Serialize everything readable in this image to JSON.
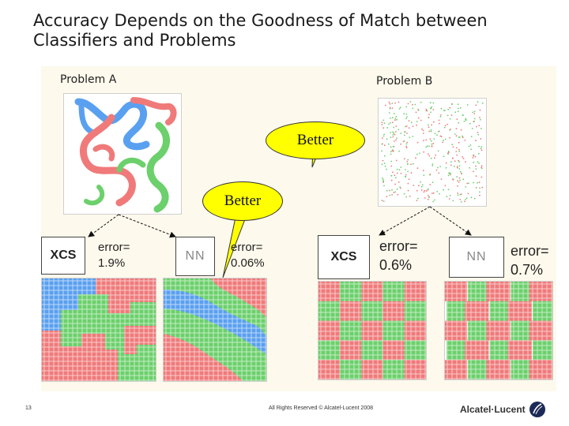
{
  "slide": {
    "title_line1": "Accuracy Depends on the Goodness of Match between",
    "title_line2": "Classifiers and Problems",
    "page_number": "13",
    "copyright": "All Rights Reserved © Alcatel-Lucent 2008",
    "logo_text": "Alcatel·Lucent"
  },
  "problems": {
    "a_label": "Problem A",
    "b_label": "Problem B"
  },
  "callouts": {
    "better_top": "Better",
    "better_mid": "Better"
  },
  "classifiers": [
    {
      "name": "XCS",
      "error": "error=\n1.9%"
    },
    {
      "name": "NN",
      "error": "error=\n0.06%"
    },
    {
      "name": "XCS",
      "error": "error=\n0.6%"
    },
    {
      "name": "NN",
      "error": "error=\n0.7%"
    }
  ],
  "colors": {
    "class_red": "#f07a7a",
    "class_green": "#6cd06c",
    "class_blue": "#5aa0f0",
    "callout_yellow": "#ffff00",
    "panel_bg": "#fdf9ec"
  }
}
